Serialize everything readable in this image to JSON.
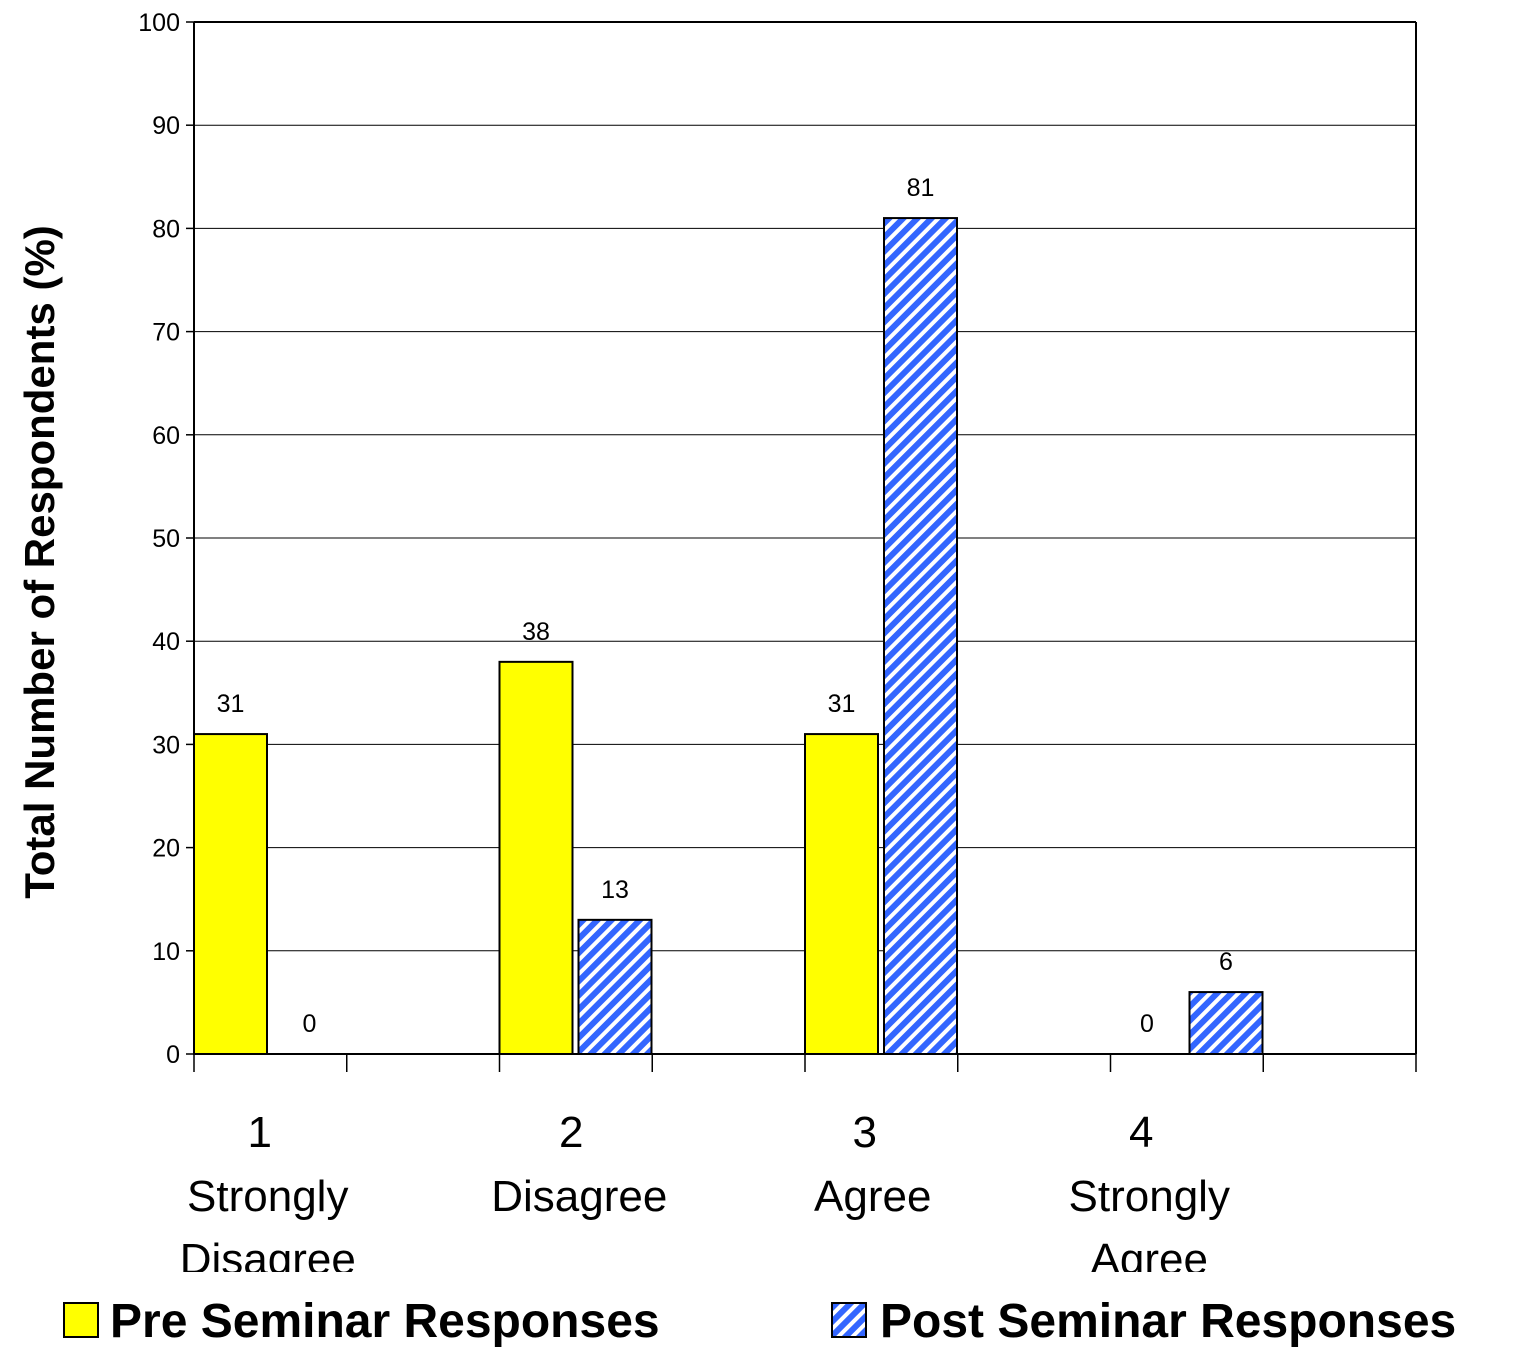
{
  "chart_data": {
    "type": "bar",
    "title": "",
    "xlabel": "",
    "ylabel": "Total Number of Respondents (%)",
    "ylim": [
      0,
      100
    ],
    "yticks": [
      0,
      10,
      20,
      30,
      40,
      50,
      60,
      70,
      80,
      90,
      100
    ],
    "grid": true,
    "legend_position": "bottom",
    "categories": [
      {
        "number": "1",
        "lines": [
          "Strongly",
          "Disagree"
        ]
      },
      {
        "number": "2",
        "lines": [
          "Disagree"
        ]
      },
      {
        "number": "3",
        "lines": [
          "Agree"
        ]
      },
      {
        "number": "4",
        "lines": [
          "Strongly",
          "Agree"
        ]
      }
    ],
    "series": [
      {
        "name": "Pre Seminar Responses",
        "values": [
          31,
          38,
          31,
          0
        ],
        "color": "#ffff00",
        "pattern": "solid"
      },
      {
        "name": "Post Seminar Responses",
        "values": [
          0,
          13,
          81,
          6
        ],
        "color": "#3366ff",
        "pattern": "diagonal-stripes"
      }
    ]
  }
}
